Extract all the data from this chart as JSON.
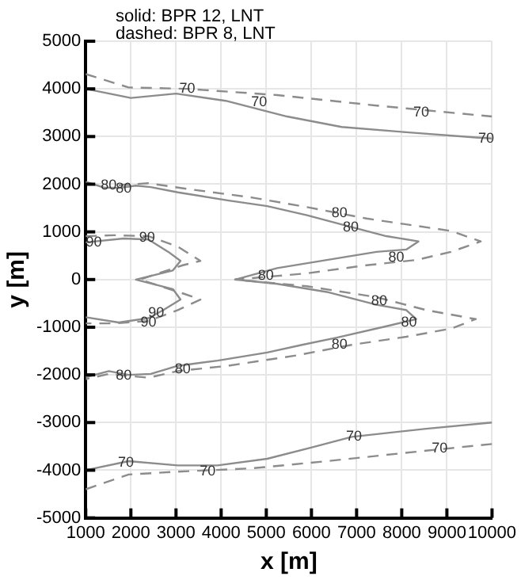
{
  "chart_data": {
    "type": "line",
    "xlabel": "x [m]",
    "ylabel": "y [m]",
    "xlim": [
      1000,
      10000
    ],
    "ylim": [
      -5000,
      5000
    ],
    "xticks": [
      1000,
      2000,
      3000,
      4000,
      5000,
      6000,
      7000,
      8000,
      9000,
      10000
    ],
    "yticks": [
      -5000,
      -4000,
      -3000,
      -2000,
      -1000,
      0,
      1000,
      2000,
      3000,
      4000,
      5000
    ],
    "grid": true,
    "marker": "none",
    "series": [
      {
        "color": "#8c8c8c",
        "line_style": "solid",
        "x": [
          1000,
          2000,
          3000,
          4100,
          5460,
          6670,
          8100,
          9640,
          10000
        ],
        "values": [
          4000,
          3810,
          3900,
          3750,
          3420,
          3200,
          3090,
          2980,
          2960
        ]
      },
      {
        "color": "#8c8c8c",
        "line_style": "dashed",
        "x": [
          1000,
          1950,
          3260,
          5240,
          7440,
          10000
        ],
        "values": [
          4310,
          4030,
          4000,
          3870,
          3650,
          3420
        ]
      },
      {
        "color": "#8c8c8c",
        "line_style": "solid",
        "x": [
          1000,
          1400,
          1730,
          2110,
          2440,
          3040,
          4140,
          5020,
          5900,
          6890,
          7660,
          8370,
          8100,
          7440,
          6340,
          5240,
          4310,
          5240,
          6340,
          7440,
          8100,
          8320,
          7660,
          6560,
          5790,
          5020,
          3920,
          3040,
          2440,
          1950,
          1510,
          1000
        ],
        "values": [
          2050,
          1930,
          1920,
          1970,
          1940,
          1830,
          1660,
          1540,
          1350,
          1100,
          910,
          800,
          630,
          580,
          410,
          240,
          0,
          -90,
          -260,
          -530,
          -640,
          -830,
          -980,
          -1220,
          -1370,
          -1530,
          -1700,
          -1810,
          -1980,
          -2000,
          -1920,
          -2050
        ]
      },
      {
        "color": "#8c8c8c",
        "line_style": "dashed",
        "x": [
          1730,
          2390,
          3260,
          4690,
          5900,
          7220,
          9090,
          9750,
          9090,
          8320,
          7220,
          5900,
          4310,
          5900,
          7440,
          8540,
          9640,
          9090,
          8100,
          6890,
          5680,
          4140,
          3040,
          2390,
          1510,
          1000
        ],
        "values": [
          1980,
          2020,
          1900,
          1720,
          1520,
          1280,
          1020,
          800,
          580,
          410,
          300,
          130,
          0,
          -140,
          -370,
          -640,
          -830,
          -1030,
          -1200,
          -1370,
          -1590,
          -1810,
          -1920,
          -2060,
          -1980,
          -2090
        ]
      },
      {
        "color": "#8c8c8c",
        "line_style": "solid",
        "x": [
          1000,
          1840,
          2390,
          2830,
          3100,
          2930,
          2110,
          2930,
          3100,
          2720,
          2390,
          1730,
          1000
        ],
        "values": [
          780,
          860,
          840,
          580,
          390,
          190,
          0,
          -200,
          -420,
          -640,
          -810,
          -900,
          -790
        ]
      },
      {
        "color": "#8c8c8c",
        "line_style": "dashed",
        "x": [
          1000,
          1620,
          2390,
          3040,
          3540,
          3150,
          2200,
          3150,
          3540,
          3040,
          2390,
          1620,
          1000
        ],
        "values": [
          910,
          930,
          910,
          690,
          390,
          300,
          0,
          -290,
          -420,
          -640,
          -870,
          -920,
          -920
        ]
      },
      {
        "color": "#8c8c8c",
        "line_style": "solid",
        "x": [
          1000,
          1950,
          3040,
          3920,
          5020,
          6010,
          6890,
          8540,
          10000
        ],
        "values": [
          -4000,
          -3810,
          -3900,
          -3900,
          -3760,
          -3520,
          -3300,
          -3130,
          -3000
        ]
      },
      {
        "color": "#8c8c8c",
        "line_style": "dashed",
        "x": [
          1000,
          1950,
          3040,
          4690,
          6340,
          8540,
          10000
        ],
        "values": [
          -4400,
          -4090,
          -4030,
          -3960,
          -3810,
          -3590,
          -3450
        ]
      }
    ],
    "annotations": [
      "solid: BPR 12, LNT",
      "dashed: BPR 8, LNT",
      {
        "text": "70",
        "x": 3250,
        "y": 4000
      },
      {
        "text": "70",
        "x": 4840,
        "y": 3720
      },
      {
        "text": "70",
        "x": 8430,
        "y": 3510
      },
      {
        "text": "70",
        "x": 9870,
        "y": 2960
      },
      {
        "text": "80",
        "x": 1510,
        "y": 1970
      },
      {
        "text": "80",
        "x": 1840,
        "y": 1900
      },
      {
        "text": "80",
        "x": 6620,
        "y": 1390
      },
      {
        "text": "80",
        "x": 6870,
        "y": 1100
      },
      {
        "text": "90",
        "x": 1180,
        "y": 780
      },
      {
        "text": "90",
        "x": 2360,
        "y": 880
      },
      {
        "text": "80",
        "x": 4990,
        "y": 80
      },
      {
        "text": "80",
        "x": 7880,
        "y": 460
      },
      {
        "text": "80",
        "x": 7500,
        "y": -460
      },
      {
        "text": "90",
        "x": 2560,
        "y": -700
      },
      {
        "text": "90",
        "x": 2390,
        "y": -900
      },
      {
        "text": "80",
        "x": 8160,
        "y": -900
      },
      {
        "text": "80",
        "x": 6620,
        "y": -1370
      },
      {
        "text": "80",
        "x": 1840,
        "y": -2010
      },
      {
        "text": "80",
        "x": 3150,
        "y": -1890
      },
      {
        "text": "70",
        "x": 1890,
        "y": -3840
      },
      {
        "text": "70",
        "x": 3700,
        "y": -4030
      },
      {
        "text": "70",
        "x": 6940,
        "y": -3300
      },
      {
        "text": "70",
        "x": 8840,
        "y": -3550
      }
    ]
  }
}
